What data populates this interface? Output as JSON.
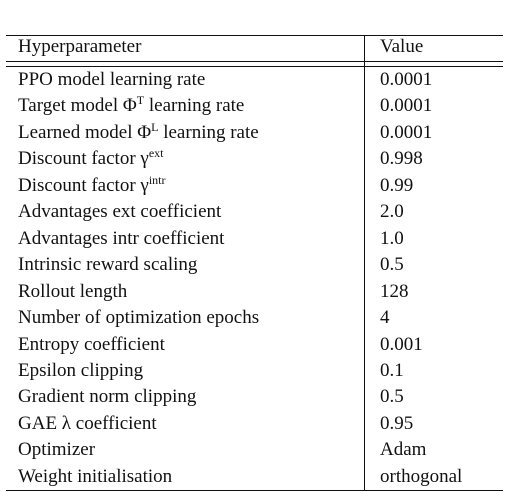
{
  "table": {
    "header": [
      "Hyperparameter",
      "Value"
    ],
    "rows": [
      {
        "name": "PPO model learning rate",
        "value": "0.0001"
      },
      {
        "name": "Target model Φ",
        "sup": "T",
        "name_after": " learning rate",
        "value": "0.0001"
      },
      {
        "name": "Learned model Φ",
        "sup": "L",
        "name_after": " learning rate",
        "value": "0.0001"
      },
      {
        "name": "Discount factor γ",
        "sup": "ext",
        "value": "0.998"
      },
      {
        "name": "Discount factor γ",
        "sup": "intr",
        "value": "0.99"
      },
      {
        "name": "Advantages ext coefficient",
        "value": "2.0"
      },
      {
        "name": "Advantages intr coefficient",
        "value": "1.0"
      },
      {
        "name": "Intrinsic reward scaling",
        "value": "0.5"
      },
      {
        "name": "Rollout length",
        "value": "128"
      },
      {
        "name": "Number of optimization epochs",
        "value": "4"
      },
      {
        "name": "Entropy coefficient",
        "value": "0.001"
      },
      {
        "name": "Epsilon clipping",
        "value": "0.1"
      },
      {
        "name": "Gradient norm clipping",
        "value": "0.5"
      },
      {
        "name": "GAE λ coefficient",
        "value": "0.95"
      },
      {
        "name": "Optimizer",
        "value": "Adam"
      },
      {
        "name": "Weight initialisation",
        "value": "orthogonal"
      }
    ]
  }
}
